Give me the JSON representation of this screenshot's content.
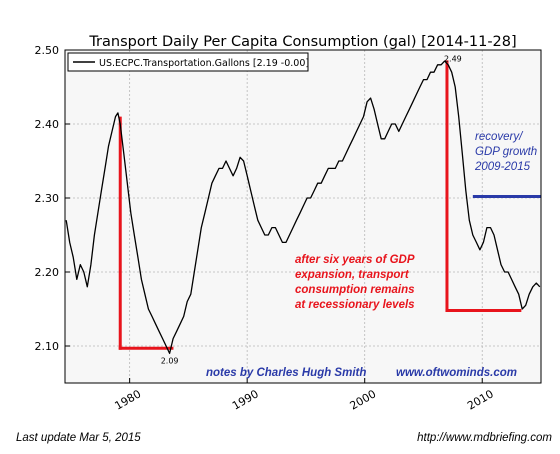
{
  "footer": {
    "last_update": "Last update Mar  5, 2015",
    "source_url": "http://www.mdbriefing.com"
  },
  "chart_data": {
    "type": "line",
    "title": "Transport Daily Per Capita Consumption (gal)  [2014-11-28]",
    "xlabel": "",
    "ylabel": "",
    "xlim": [
      1974.5,
      2015.0
    ],
    "ylim": [
      2.05,
      2.5
    ],
    "x_ticks": [
      1980,
      1990,
      2000,
      2010
    ],
    "y_ticks": [
      2.1,
      2.2,
      2.3,
      2.4,
      2.5
    ],
    "y_tick_labels": [
      "2.10",
      "2.20",
      "2.30",
      "2.40",
      "2.50"
    ],
    "grid": true,
    "legend": {
      "position": "top-left",
      "entries": [
        "US.ECPC.Transportation.Gallons [2.19 -0.00]"
      ]
    },
    "series": [
      {
        "name": "US.ECPC.Transportation.Gallons [2.19 -0.00]",
        "color": "#000000",
        "x": [
          1974.6,
          1974.9,
          1975.2,
          1975.5,
          1975.8,
          1976.1,
          1976.4,
          1976.7,
          1977.0,
          1977.3,
          1977.6,
          1977.9,
          1978.2,
          1978.5,
          1978.8,
          1979.0,
          1979.2,
          1979.5,
          1979.8,
          1980.1,
          1980.4,
          1980.7,
          1981.0,
          1981.3,
          1981.6,
          1981.9,
          1982.2,
          1982.5,
          1982.8,
          1983.1,
          1983.4,
          1983.7,
          1984.0,
          1984.3,
          1984.6,
          1984.9,
          1985.2,
          1985.5,
          1985.8,
          1986.1,
          1986.4,
          1986.7,
          1987.0,
          1987.3,
          1987.6,
          1987.9,
          1988.2,
          1988.5,
          1988.8,
          1989.1,
          1989.4,
          1989.7,
          1990.0,
          1990.3,
          1990.6,
          1990.9,
          1991.2,
          1991.5,
          1991.8,
          1992.1,
          1992.4,
          1992.7,
          1993.0,
          1993.3,
          1993.6,
          1993.9,
          1994.2,
          1994.5,
          1994.8,
          1995.1,
          1995.4,
          1995.7,
          1996.0,
          1996.3,
          1996.6,
          1996.9,
          1997.2,
          1997.5,
          1997.8,
          1998.1,
          1998.4,
          1998.7,
          1999.0,
          1999.3,
          1999.6,
          1999.9,
          2000.2,
          2000.5,
          2000.8,
          2001.1,
          2001.4,
          2001.7,
          2002.0,
          2002.3,
          2002.6,
          2002.9,
          2003.2,
          2003.5,
          2003.8,
          2004.1,
          2004.4,
          2004.7,
          2005.0,
          2005.3,
          2005.6,
          2005.9,
          2006.2,
          2006.5,
          2006.8,
          2007.1,
          2007.4,
          2007.7,
          2008.0,
          2008.3,
          2008.6,
          2008.9,
          2009.2,
          2009.5,
          2009.8,
          2010.1,
          2010.4,
          2010.7,
          2011.0,
          2011.3,
          2011.6,
          2011.9,
          2012.2,
          2012.5,
          2012.8,
          2013.1,
          2013.4,
          2013.7,
          2014.0,
          2014.3,
          2014.6,
          2014.9
        ],
        "y": [
          2.27,
          2.24,
          2.22,
          2.19,
          2.21,
          2.2,
          2.18,
          2.21,
          2.25,
          2.28,
          2.31,
          2.34,
          2.37,
          2.39,
          2.41,
          2.415,
          2.4,
          2.36,
          2.32,
          2.28,
          2.25,
          2.22,
          2.19,
          2.17,
          2.15,
          2.14,
          2.13,
          2.12,
          2.11,
          2.1,
          2.09,
          2.11,
          2.12,
          2.13,
          2.14,
          2.16,
          2.17,
          2.2,
          2.23,
          2.26,
          2.28,
          2.3,
          2.32,
          2.33,
          2.34,
          2.34,
          2.35,
          2.34,
          2.33,
          2.34,
          2.355,
          2.35,
          2.33,
          2.31,
          2.29,
          2.27,
          2.26,
          2.25,
          2.25,
          2.26,
          2.26,
          2.25,
          2.24,
          2.24,
          2.25,
          2.26,
          2.27,
          2.28,
          2.29,
          2.3,
          2.3,
          2.31,
          2.32,
          2.32,
          2.33,
          2.34,
          2.34,
          2.34,
          2.35,
          2.35,
          2.36,
          2.37,
          2.38,
          2.39,
          2.4,
          2.41,
          2.43,
          2.435,
          2.42,
          2.4,
          2.38,
          2.38,
          2.39,
          2.4,
          2.4,
          2.39,
          2.4,
          2.41,
          2.42,
          2.43,
          2.44,
          2.45,
          2.46,
          2.46,
          2.47,
          2.47,
          2.48,
          2.48,
          2.485,
          2.48,
          2.47,
          2.45,
          2.41,
          2.36,
          2.31,
          2.27,
          2.25,
          2.24,
          2.23,
          2.24,
          2.26,
          2.26,
          2.25,
          2.23,
          2.21,
          2.2,
          2.2,
          2.19,
          2.18,
          2.17,
          2.15,
          2.155,
          2.17,
          2.18,
          2.185,
          2.18
        ]
      }
    ],
    "point_labels": [
      {
        "text": "2.49",
        "x": 2007.5,
        "y": 2.49
      },
      {
        "text": "2.09",
        "x": 1983.4,
        "y": 2.09
      }
    ],
    "overlays": {
      "red_color": "#e8141c",
      "blue_color": "#2a3aa8",
      "red_segments": [
        {
          "x1": 1979.2,
          "y1": 2.408,
          "x2": 1979.2,
          "y2": 2.097
        },
        {
          "x1": 1979.2,
          "y1": 2.097,
          "x2": 1983.6,
          "y2": 2.097
        },
        {
          "x1": 2007.0,
          "y1": 2.484,
          "x2": 2007.0,
          "y2": 2.148
        },
        {
          "x1": 2007.0,
          "y1": 2.148,
          "x2": 2013.2,
          "y2": 2.148
        }
      ],
      "blue_segment": {
        "x1": 2009.2,
        "y1": 2.302,
        "x2": 2015.0,
        "y2": 2.302
      }
    },
    "annotations": {
      "red_text": [
        "after six years of GDP",
        "expansion, transport",
        "consumption remains",
        "at recessionary levels"
      ],
      "blue_text": [
        "recovery/",
        "GDP growth",
        "2009-2015"
      ],
      "credit": "notes by Charles Hugh Smith",
      "website": "www.oftwominds.com"
    }
  }
}
